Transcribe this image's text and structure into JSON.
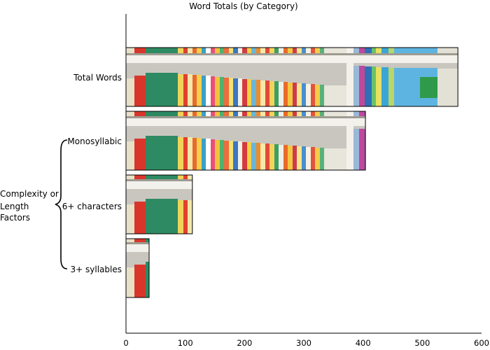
{
  "chart_data": {
    "type": "bar",
    "orientation": "horizontal",
    "title": "Word Totals (by Category)",
    "categories": [
      "Total Words",
      "Monosyllabic",
      "6+ characters",
      "3+ syllables"
    ],
    "values": [
      560,
      404,
      112,
      39
    ],
    "xlim": [
      0,
      600
    ],
    "xticks": [
      0,
      100,
      200,
      300,
      400,
      500,
      600
    ],
    "xlabel": "",
    "ylabel": "",
    "grid": false,
    "group": {
      "label_lines": [
        "Complexity or",
        "Length",
        "Factors"
      ],
      "categories": [
        "Monosyllabic",
        "6+ characters",
        "3+ syllables"
      ]
    },
    "bar_fill": "photo of bookshelves with children's books",
    "colors": {
      "bar_border": "#000000",
      "axis": "#000000",
      "background": "#ffffff"
    }
  }
}
